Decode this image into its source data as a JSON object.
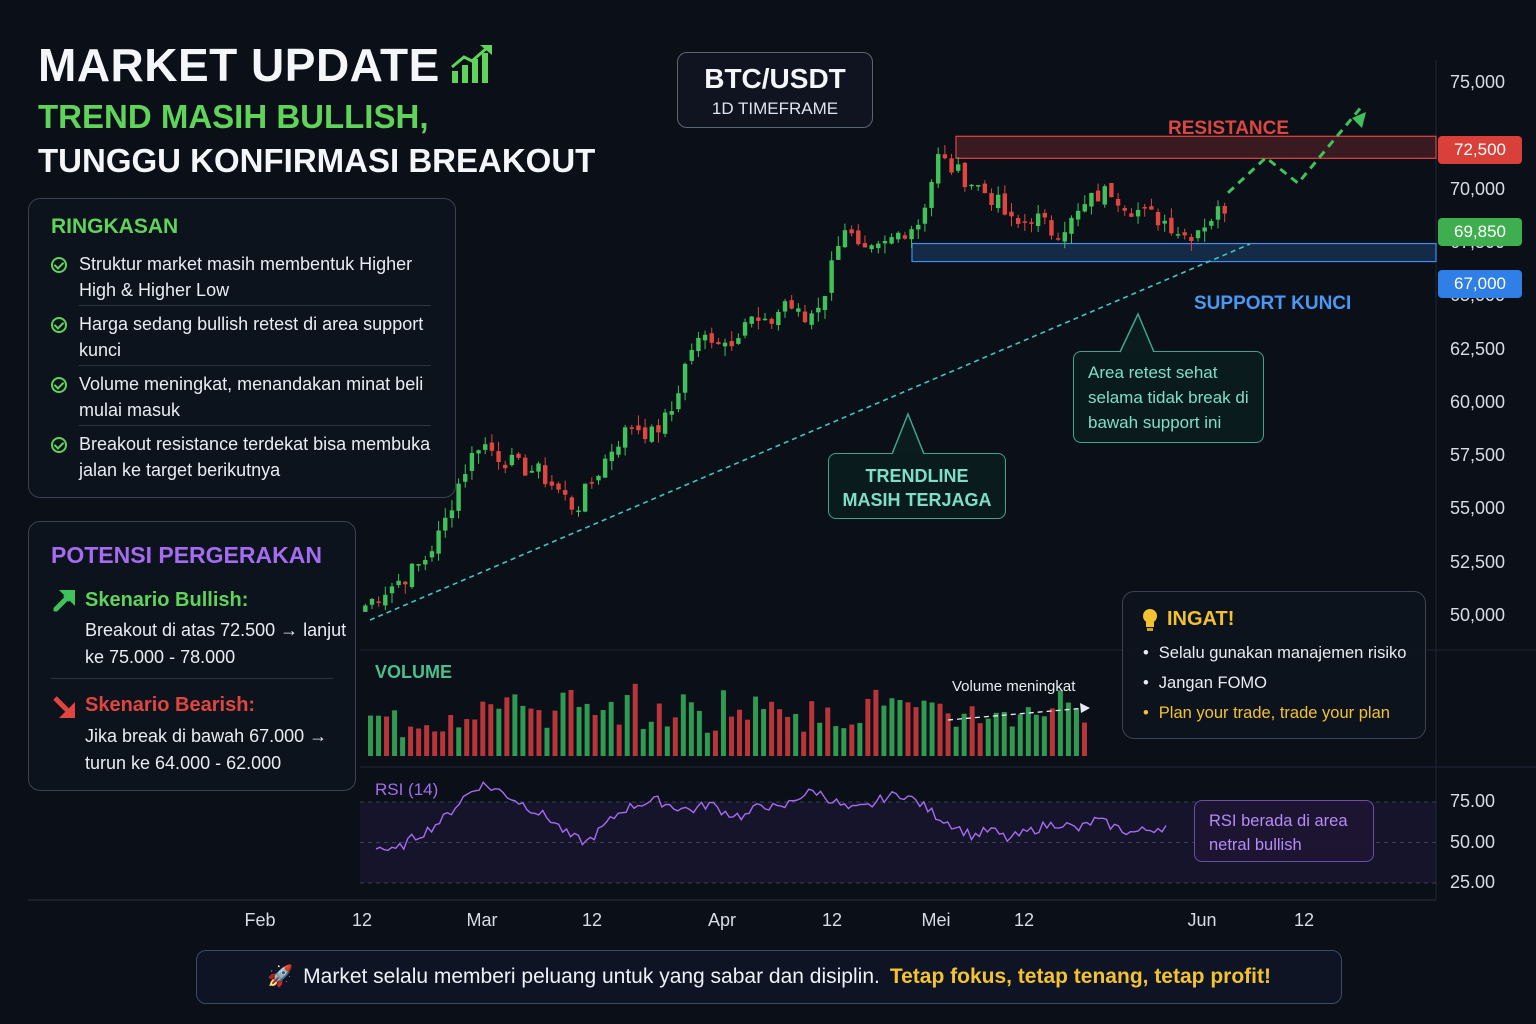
{
  "header": {
    "title": "MARKET UPDATE",
    "subtitle_line1": "TREND MASIH BULLISH,",
    "subtitle_line2": "TUNGGU KONFIRMASI BREAKOUT"
  },
  "pair": {
    "symbol": "BTC/USDT",
    "timeframe": "1D TIMEFRAME"
  },
  "summary": {
    "title": "RINGKASAN",
    "items": [
      "Struktur market masih membentuk Higher High & Higher Low",
      "Harga sedang bullish retest di area support kunci",
      "Volume meningkat, menandakan minat beli mulai masuk",
      "Breakout resistance terdekat bisa membuka jalan ke target berikutnya"
    ]
  },
  "potential": {
    "title": "POTENSI PERGERAKAN",
    "bullish_label": "Skenario Bullish:",
    "bullish_text": "Breakout di atas 72.500 → lanjut ke 75.000 - 78.000",
    "bearish_label": "Skenario Bearish:",
    "bearish_text": "Jika break di bawah 67.000 → turun ke 64.000 - 62.000"
  },
  "reminder": {
    "title": "INGAT!",
    "items": [
      "Selalu gunakan manajemen risiko",
      "Jangan FOMO",
      "Plan your trade, trade your plan"
    ]
  },
  "annotations": {
    "resistance": "RESISTANCE",
    "support": "SUPPORT KUNCI",
    "trendline": "TRENDLINE MASIH TERJAGA",
    "retest": "Area retest sehat selama tidak break di bawah support ini",
    "volume_label": "VOLUME",
    "volume_note": "Volume meningkat",
    "rsi_label": "RSI (14)",
    "rsi_note": "RSI berada di area netral bullish"
  },
  "price_tags": {
    "resistance": "72,500",
    "current": "69,850",
    "support": "67,000"
  },
  "footer": {
    "text": "Market selalu memberi peluang untuk yang sabar dan disiplin.",
    "highlight": "Tetap fokus, tetap tenang, tetap profit!"
  },
  "colors": {
    "bull": "#3fc25a",
    "bear": "#e0463f",
    "resistance": "#e0463f",
    "support": "#3b8ff0",
    "trend": "#3fc7c0",
    "rsi": "#a46cf0",
    "accent_yellow": "#f2c230",
    "accent_green": "#5fd35a"
  },
  "chart_data": {
    "type": "candlestick",
    "x_tick_labels": [
      "Feb",
      "12",
      "Mar",
      "12",
      "Apr",
      "12",
      "Mei",
      "12",
      "Jun",
      "12"
    ],
    "y_tick_labels": [
      "75,000",
      "72,500",
      "70,000",
      "67,500",
      "65,000",
      "62,500",
      "60,000",
      "57,500",
      "55,000",
      "52,500",
      "50,000"
    ],
    "ylim": [
      49000,
      76000
    ],
    "resistance_level": 72500,
    "support_level": 67000,
    "current_price": 69850,
    "close_path": [
      50500,
      51200,
      51800,
      52500,
      54000,
      56500,
      58200,
      57500,
      57000,
      56800,
      56000,
      55000,
      56500,
      58000,
      59000,
      58500,
      59500,
      62500,
      63200,
      62800,
      64000,
      63500,
      64800,
      63800,
      65000,
      68500,
      66800,
      67200,
      68000,
      68500,
      71500,
      70800,
      70200,
      69500,
      68200,
      68800,
      68000,
      68500,
      69500,
      70000,
      69200,
      68800,
      68500,
      67800,
      68500,
      69200
    ],
    "volume_relative": [
      0.32,
      0.4,
      0.3,
      0.45,
      0.38,
      0.5,
      0.62,
      0.7,
      0.55,
      0.9,
      0.6,
      0.48,
      0.75,
      0.55,
      0.35,
      0.62,
      0.8,
      0.5,
      0.45,
      0.68,
      0.55,
      0.4,
      0.78,
      0.52,
      0.6,
      0.85,
      0.66,
      0.48,
      0.4,
      0.5,
      0.58,
      0.72,
      0.88,
      0.62,
      0.5,
      0.44,
      0.36,
      0.62,
      0.55,
      0.4,
      0.5,
      0.7,
      0.6,
      0.8,
      0.66,
      0.5
    ],
    "rsi": {
      "tick_labels": [
        "75.00",
        "50.00",
        "25.00"
      ],
      "values": [
        48,
        44,
        52,
        58,
        66,
        78,
        86,
        82,
        76,
        70,
        64,
        54,
        50,
        60,
        70,
        74,
        76,
        72,
        70,
        74,
        68,
        66,
        74,
        70,
        78,
        82,
        76,
        70,
        72,
        78,
        80,
        74,
        66,
        60,
        54,
        58,
        52,
        56,
        60,
        62,
        58,
        64,
        60,
        56,
        58,
        60
      ]
    },
    "projection": [
      69850,
      71500,
      70300,
      73800
    ]
  }
}
